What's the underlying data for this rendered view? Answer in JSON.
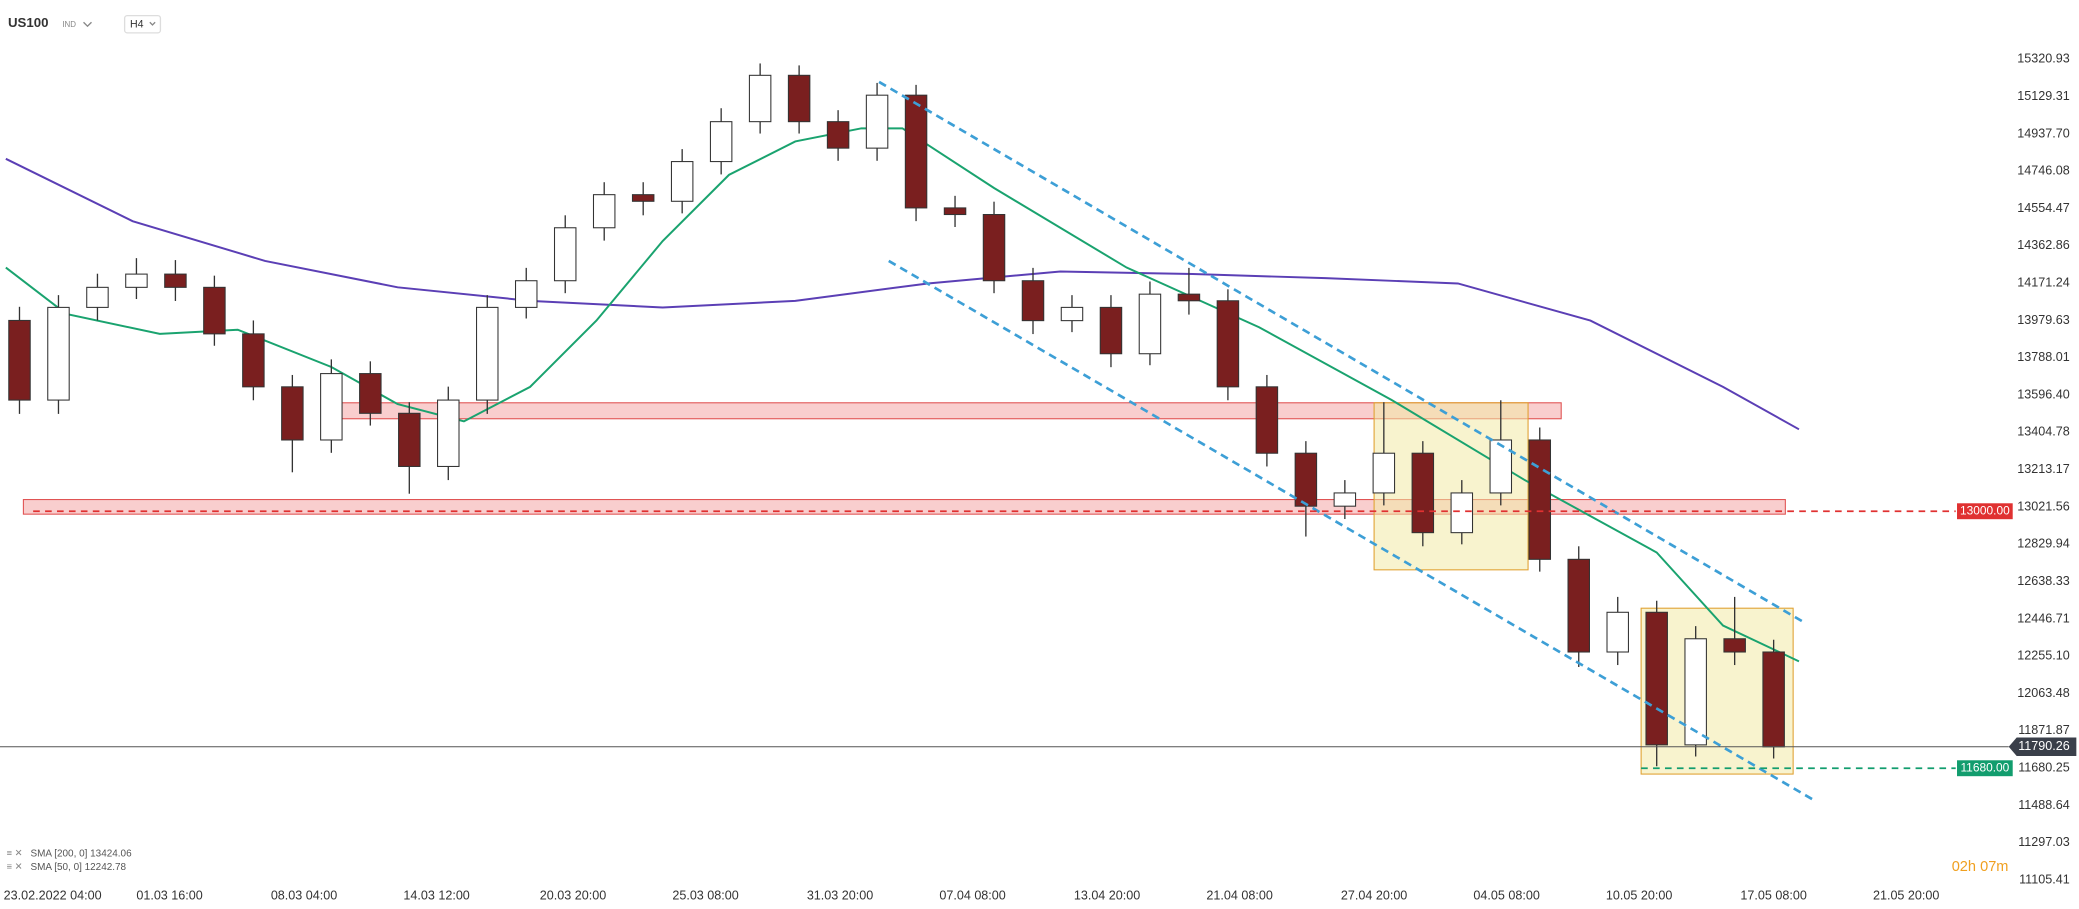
{
  "header": {
    "symbol": "US100",
    "market": "IND",
    "timeframe": "H4"
  },
  "chart_data": {
    "type": "candlestick",
    "up_color": "#ffffff",
    "down_color": "#7a1f1f",
    "wick_color": "#333333",
    "x": [
      1,
      3,
      5,
      7,
      9,
      11,
      13,
      15,
      17,
      19,
      21,
      23,
      25,
      27,
      29,
      31,
      33,
      35,
      37,
      39,
      41,
      43,
      45,
      47,
      49,
      51,
      53,
      55,
      57,
      59,
      61,
      63,
      65,
      67,
      69,
      71,
      73,
      75,
      77,
      79,
      81,
      83,
      85,
      87,
      89,
      91
    ],
    "open": [
      13980,
      13571,
      14047,
      14150,
      14218,
      14150,
      13911,
      13639,
      13366,
      13707,
      13503,
      13230,
      13571,
      14047,
      14184,
      14456,
      14626,
      14592,
      14796,
      15001,
      15239,
      15001,
      14865,
      15137,
      14558,
      14524,
      14184,
      13979,
      14047,
      13809,
      14115,
      14081,
      13639,
      13298,
      13026,
      13094,
      13298,
      12890,
      13094,
      13366,
      12753,
      12277,
      12481,
      11800,
      12345,
      12277
    ],
    "high": [
      14050,
      14110,
      14220,
      14300,
      14290,
      14210,
      13980,
      13700,
      13780,
      13770,
      13560,
      13640,
      14110,
      14250,
      14520,
      14690,
      14690,
      14860,
      15070,
      15300,
      15290,
      15060,
      15200,
      15190,
      14620,
      14590,
      14250,
      14110,
      14110,
      14180,
      14250,
      14140,
      13700,
      13360,
      13160,
      13560,
      13360,
      13160,
      13570,
      13430,
      12820,
      12560,
      12540,
      12410,
      12560,
      12340
    ],
    "low": [
      13500,
      13500,
      13980,
      14090,
      14080,
      13850,
      13570,
      13200,
      13300,
      13440,
      13090,
      13160,
      13500,
      13990,
      14120,
      14390,
      14520,
      14530,
      14730,
      14940,
      14940,
      14800,
      14800,
      14490,
      14460,
      14120,
      13910,
      13920,
      13740,
      13750,
      14010,
      13570,
      13230,
      12870,
      12960,
      13030,
      12820,
      12830,
      13030,
      12690,
      12200,
      12210,
      11690,
      11740,
      12210,
      11730
    ],
    "close": [
      13571,
      14047,
      14150,
      14218,
      14150,
      13911,
      13639,
      13366,
      13707,
      13503,
      13230,
      13571,
      14047,
      14184,
      14456,
      14626,
      14592,
      14796,
      15001,
      15239,
      15001,
      14865,
      15137,
      14558,
      14524,
      14184,
      13979,
      14047,
      13809,
      14115,
      14081,
      13639,
      13298,
      13026,
      13094,
      13298,
      12890,
      13094,
      13366,
      12753,
      12277,
      12481,
      11800,
      12345,
      12277,
      11790
    ],
    "xlim": [
      0,
      100
    ],
    "ylim": [
      11064.5,
      15613.7
    ],
    "yticks": [
      15320.93,
      15129.31,
      {
        "value": 14937.7,
        "label": "14937.70"
      },
      14746.08,
      14554.47,
      14362.86,
      14171.24,
      13979.63,
      13788.01,
      {
        "value": 13596.4,
        "label": "13596.40"
      },
      13404.78,
      13213.17,
      13021.56,
      12829.94,
      12638.33,
      12446.71,
      {
        "value": 12255.1,
        "label": "12255.10"
      },
      12063.48,
      11871.87,
      11680.25,
      11488.64,
      11297.03,
      11105.41
    ],
    "xticks": [
      {
        "value": 2.7,
        "label": "23.02.2022 04:00"
      },
      {
        "value": 8.7,
        "label": "01.03 16:00"
      },
      {
        "value": 15.6,
        "label": "08.03 04:00"
      },
      {
        "value": 22.4,
        "label": "14.03 12:00"
      },
      {
        "value": 29.4,
        "label": "20.03 20:00"
      },
      {
        "value": 36.2,
        "label": "25.03 08:00"
      },
      {
        "value": 43.1,
        "label": "31.03 20:00"
      },
      {
        "value": 49.9,
        "label": "07.04 08:00"
      },
      {
        "value": 56.8,
        "label": "13.04 20:00"
      },
      {
        "value": 63.6,
        "label": "21.04 08:00"
      },
      {
        "value": 70.5,
        "label": "27.04 20:00"
      },
      {
        "value": 77.3,
        "label": "04.05 08:00"
      },
      {
        "value": 84.1,
        "label": "10.05 20:00"
      },
      {
        "value": 91.0,
        "label": "17.05 08:00"
      },
      {
        "value": 97.8,
        "label": "21.05 20:00"
      }
    ],
    "indicators": [
      {
        "name": "SMA [200, 0]",
        "last_value": 13424.06,
        "color": "#5b3fb5",
        "x": [
          0.3,
          6.8,
          13.6,
          20.4,
          27.2,
          34.0,
          40.8,
          47.6,
          54.4,
          61.2,
          68.0,
          74.8,
          81.6,
          88.4,
          92.3
        ],
        "values": [
          14810,
          14490,
          14286,
          14150,
          14081,
          14047,
          14081,
          14170,
          14231,
          14218,
          14197,
          14170,
          13979,
          13639,
          13421
        ]
      },
      {
        "name": "SMA [50, 0]",
        "last_value": 12242.78,
        "color": "#1aa36f",
        "x": [
          0.3,
          3.4,
          8.2,
          12.2,
          17.0,
          20.4,
          23.8,
          27.2,
          30.6,
          34.0,
          37.4,
          40.8,
          44.2,
          46.3,
          51.0,
          57.8,
          64.6,
          71.4,
          78.2,
          85.0,
          88.4,
          92.3
        ],
        "values": [
          14252,
          14013,
          13911,
          13932,
          13741,
          13550,
          13462,
          13639,
          13979,
          14388,
          14728,
          14899,
          14967,
          14967,
          14660,
          14252,
          13945,
          13571,
          13162,
          12788,
          12413,
          12229
        ]
      }
    ],
    "channel": {
      "color": "#3d9fd6",
      "lines": [
        {
          "x": [
            45.1,
            92.5
          ],
          "values": [
            15205,
            12433
          ]
        },
        {
          "x": [
            45.6,
            93.1
          ],
          "values": [
            14286,
            11514
          ]
        }
      ]
    },
    "zones": [
      {
        "x": [
          17.2,
          80.1
        ],
        "y": [
          13557,
          13475
        ],
        "color": "#f4a6a6"
      },
      {
        "x": [
          1.2,
          91.6
        ],
        "y": [
          13060,
          12985
        ],
        "color": "#f4a6a6"
      },
      {
        "x": [
          70.5,
          78.4
        ],
        "y": [
          13557,
          12699
        ],
        "color": "#f3e9a6"
      },
      {
        "x": [
          84.2,
          92.0
        ],
        "y": [
          12502,
          11650
        ],
        "color": "#f3e9a6"
      }
    ],
    "levels": [
      {
        "value": 13000,
        "label": "13000.00",
        "color": "#e03131"
      },
      {
        "value": 11680,
        "label": "11680.00",
        "color": "#129d6e"
      }
    ],
    "current_price": 11790.26,
    "countdown": {
      "hours": "02h",
      "minutes": "07m"
    }
  }
}
